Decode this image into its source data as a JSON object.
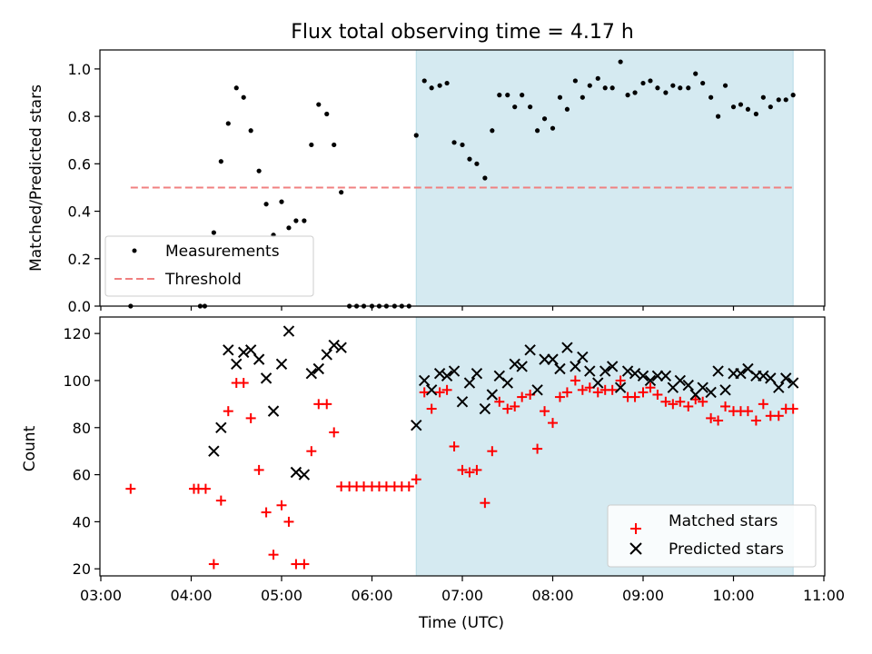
{
  "chart_data": [
    {
      "type": "scatter",
      "title": "Flux total observing time = 4.17 h",
      "xlabel": "",
      "ylabel": "Matched/Predicted stars",
      "ylim": [
        0,
        1.08
      ],
      "yticks": [
        "0.0",
        "0.2",
        "0.4",
        "0.6",
        "0.8",
        "1.0"
      ],
      "shaded_span_hours": [
        6.49,
        10.66
      ],
      "shade_color": "#d5eaf1",
      "threshold": {
        "name": "Threshold",
        "value": 0.5,
        "x_range_hours": [
          3.33,
          10.66
        ],
        "color": "#f08080"
      },
      "legend": {
        "placement": "lower-left",
        "entries": [
          "Measurements",
          "Threshold"
        ]
      },
      "series": [
        {
          "name": "Measurements",
          "marker": "dot",
          "color": "#000000",
          "points": [
            [
              3.33,
              0.0
            ],
            [
              4.1,
              0.0
            ],
            [
              4.15,
              0.0
            ],
            [
              4.25,
              0.31
            ],
            [
              4.33,
              0.61
            ],
            [
              4.41,
              0.77
            ],
            [
              4.5,
              0.92
            ],
            [
              4.58,
              0.88
            ],
            [
              4.66,
              0.74
            ],
            [
              4.75,
              0.57
            ],
            [
              4.83,
              0.43
            ],
            [
              4.91,
              0.3
            ],
            [
              5.0,
              0.44
            ],
            [
              5.08,
              0.33
            ],
            [
              5.16,
              0.36
            ],
            [
              5.25,
              0.36
            ],
            [
              5.33,
              0.68
            ],
            [
              5.41,
              0.85
            ],
            [
              5.5,
              0.81
            ],
            [
              5.58,
              0.68
            ],
            [
              5.66,
              0.48
            ],
            [
              5.75,
              0.0
            ],
            [
              5.83,
              0.0
            ],
            [
              5.91,
              0.0
            ],
            [
              6.0,
              0.0
            ],
            [
              6.08,
              0.0
            ],
            [
              6.16,
              0.0
            ],
            [
              6.25,
              0.0
            ],
            [
              6.33,
              0.0
            ],
            [
              6.41,
              0.0
            ],
            [
              6.49,
              0.72
            ],
            [
              6.58,
              0.95
            ],
            [
              6.66,
              0.92
            ],
            [
              6.75,
              0.93
            ],
            [
              6.83,
              0.94
            ],
            [
              6.91,
              0.69
            ],
            [
              7.0,
              0.68
            ],
            [
              7.08,
              0.62
            ],
            [
              7.16,
              0.6
            ],
            [
              7.25,
              0.54
            ],
            [
              7.33,
              0.74
            ],
            [
              7.41,
              0.89
            ],
            [
              7.5,
              0.89
            ],
            [
              7.58,
              0.84
            ],
            [
              7.66,
              0.89
            ],
            [
              7.75,
              0.84
            ],
            [
              7.83,
              0.74
            ],
            [
              7.91,
              0.79
            ],
            [
              8.0,
              0.75
            ],
            [
              8.08,
              0.88
            ],
            [
              8.16,
              0.83
            ],
            [
              8.25,
              0.95
            ],
            [
              8.33,
              0.88
            ],
            [
              8.41,
              0.93
            ],
            [
              8.5,
              0.96
            ],
            [
              8.58,
              0.92
            ],
            [
              8.66,
              0.92
            ],
            [
              8.75,
              1.03
            ],
            [
              8.83,
              0.89
            ],
            [
              8.91,
              0.9
            ],
            [
              9.0,
              0.94
            ],
            [
              9.08,
              0.95
            ],
            [
              9.16,
              0.92
            ],
            [
              9.25,
              0.9
            ],
            [
              9.33,
              0.93
            ],
            [
              9.41,
              0.92
            ],
            [
              9.5,
              0.92
            ],
            [
              9.58,
              0.98
            ],
            [
              9.66,
              0.94
            ],
            [
              9.75,
              0.88
            ],
            [
              9.83,
              0.8
            ],
            [
              9.91,
              0.93
            ],
            [
              10.0,
              0.84
            ],
            [
              10.08,
              0.85
            ],
            [
              10.16,
              0.83
            ],
            [
              10.25,
              0.81
            ],
            [
              10.33,
              0.88
            ],
            [
              10.41,
              0.84
            ],
            [
              10.5,
              0.87
            ],
            [
              10.58,
              0.87
            ],
            [
              10.66,
              0.89
            ]
          ]
        }
      ]
    },
    {
      "type": "scatter",
      "title": "",
      "xlabel": "Time (UTC)",
      "ylabel": "Count",
      "ylim": [
        17,
        127
      ],
      "yticks": [
        "20",
        "40",
        "60",
        "80",
        "100",
        "120"
      ],
      "xlim_hours": [
        2.99,
        11.01
      ],
      "xticks": [
        "03:00",
        "04:00",
        "05:00",
        "06:00",
        "07:00",
        "08:00",
        "09:00",
        "10:00",
        "11:00"
      ],
      "shaded_span_hours": [
        6.49,
        10.66
      ],
      "legend": {
        "placement": "lower-right",
        "entries": [
          "Matched stars",
          "Predicted stars"
        ]
      },
      "series": [
        {
          "name": "Matched stars",
          "marker": "plus",
          "color": "#ff0000",
          "points": [
            [
              3.33,
              54
            ],
            [
              4.03,
              54
            ],
            [
              4.08,
              54
            ],
            [
              4.16,
              54
            ],
            [
              4.25,
              22
            ],
            [
              4.33,
              49
            ],
            [
              4.41,
              87
            ],
            [
              4.5,
              99
            ],
            [
              4.58,
              99
            ],
            [
              4.66,
              84
            ],
            [
              4.75,
              62
            ],
            [
              4.83,
              44
            ],
            [
              4.91,
              26
            ],
            [
              5.0,
              47
            ],
            [
              5.08,
              40
            ],
            [
              5.16,
              22
            ],
            [
              5.25,
              22
            ],
            [
              5.33,
              70
            ],
            [
              5.41,
              90
            ],
            [
              5.5,
              90
            ],
            [
              5.58,
              78
            ],
            [
              5.66,
              55
            ],
            [
              5.75,
              55
            ],
            [
              5.83,
              55
            ],
            [
              5.91,
              55
            ],
            [
              6.0,
              55
            ],
            [
              6.08,
              55
            ],
            [
              6.16,
              55
            ],
            [
              6.25,
              55
            ],
            [
              6.33,
              55
            ],
            [
              6.41,
              55
            ],
            [
              6.49,
              58
            ],
            [
              6.58,
              95
            ],
            [
              6.66,
              88
            ],
            [
              6.75,
              95
            ],
            [
              6.83,
              96
            ],
            [
              6.91,
              72
            ],
            [
              7.0,
              62
            ],
            [
              7.08,
              61
            ],
            [
              7.16,
              62
            ],
            [
              7.25,
              48
            ],
            [
              7.33,
              70
            ],
            [
              7.41,
              91
            ],
            [
              7.5,
              88
            ],
            [
              7.58,
              89
            ],
            [
              7.66,
              93
            ],
            [
              7.75,
              94
            ],
            [
              7.83,
              71
            ],
            [
              7.91,
              87
            ],
            [
              8.0,
              82
            ],
            [
              8.08,
              93
            ],
            [
              8.16,
              95
            ],
            [
              8.25,
              100
            ],
            [
              8.33,
              96
            ],
            [
              8.41,
              97
            ],
            [
              8.5,
              95
            ],
            [
              8.58,
              96
            ],
            [
              8.66,
              96
            ],
            [
              8.75,
              100
            ],
            [
              8.83,
              93
            ],
            [
              8.91,
              93
            ],
            [
              9.0,
              95
            ],
            [
              9.08,
              97
            ],
            [
              9.16,
              94
            ],
            [
              9.25,
              91
            ],
            [
              9.33,
              90
            ],
            [
              9.41,
              91
            ],
            [
              9.5,
              89
            ],
            [
              9.58,
              92
            ],
            [
              9.66,
              91
            ],
            [
              9.75,
              84
            ],
            [
              9.83,
              83
            ],
            [
              9.91,
              89
            ],
            [
              10.0,
              87
            ],
            [
              10.08,
              87
            ],
            [
              10.16,
              87
            ],
            [
              10.25,
              83
            ],
            [
              10.33,
              90
            ],
            [
              10.41,
              85
            ],
            [
              10.5,
              85
            ],
            [
              10.58,
              88
            ],
            [
              10.66,
              88
            ]
          ]
        },
        {
          "name": "Predicted stars",
          "marker": "x",
          "color": "#000000",
          "points": [
            [
              4.25,
              70
            ],
            [
              4.33,
              80
            ],
            [
              4.41,
              113
            ],
            [
              4.5,
              107
            ],
            [
              4.58,
              112
            ],
            [
              4.66,
              113
            ],
            [
              4.75,
              109
            ],
            [
              4.83,
              101
            ],
            [
              4.91,
              87
            ],
            [
              5.0,
              107
            ],
            [
              5.08,
              121
            ],
            [
              5.16,
              61
            ],
            [
              5.25,
              60
            ],
            [
              5.33,
              103
            ],
            [
              5.41,
              105
            ],
            [
              5.5,
              111
            ],
            [
              5.58,
              115
            ],
            [
              5.66,
              114
            ],
            [
              6.49,
              81
            ],
            [
              6.58,
              100
            ],
            [
              6.66,
              96
            ],
            [
              6.75,
              103
            ],
            [
              6.83,
              102
            ],
            [
              6.91,
              104
            ],
            [
              7.0,
              91
            ],
            [
              7.08,
              99
            ],
            [
              7.16,
              103
            ],
            [
              7.25,
              88
            ],
            [
              7.33,
              94
            ],
            [
              7.41,
              102
            ],
            [
              7.5,
              99
            ],
            [
              7.58,
              107
            ],
            [
              7.66,
              106
            ],
            [
              7.75,
              113
            ],
            [
              7.83,
              96
            ],
            [
              7.91,
              109
            ],
            [
              8.0,
              109
            ],
            [
              8.08,
              105
            ],
            [
              8.16,
              114
            ],
            [
              8.25,
              106
            ],
            [
              8.33,
              110
            ],
            [
              8.41,
              104
            ],
            [
              8.5,
              99
            ],
            [
              8.58,
              104
            ],
            [
              8.66,
              106
            ],
            [
              8.75,
              97
            ],
            [
              8.83,
              104
            ],
            [
              8.91,
              103
            ],
            [
              9.0,
              102
            ],
            [
              9.08,
              100
            ],
            [
              9.16,
              102
            ],
            [
              9.25,
              102
            ],
            [
              9.33,
              97
            ],
            [
              9.41,
              100
            ],
            [
              9.5,
              98
            ],
            [
              9.58,
              94
            ],
            [
              9.66,
              97
            ],
            [
              9.75,
              95
            ],
            [
              9.83,
              104
            ],
            [
              9.91,
              96
            ],
            [
              10.0,
              103
            ],
            [
              10.08,
              103
            ],
            [
              10.16,
              105
            ],
            [
              10.25,
              102
            ],
            [
              10.33,
              102
            ],
            [
              10.41,
              101
            ],
            [
              10.5,
              97
            ],
            [
              10.58,
              101
            ],
            [
              10.66,
              99
            ]
          ]
        }
      ]
    }
  ]
}
